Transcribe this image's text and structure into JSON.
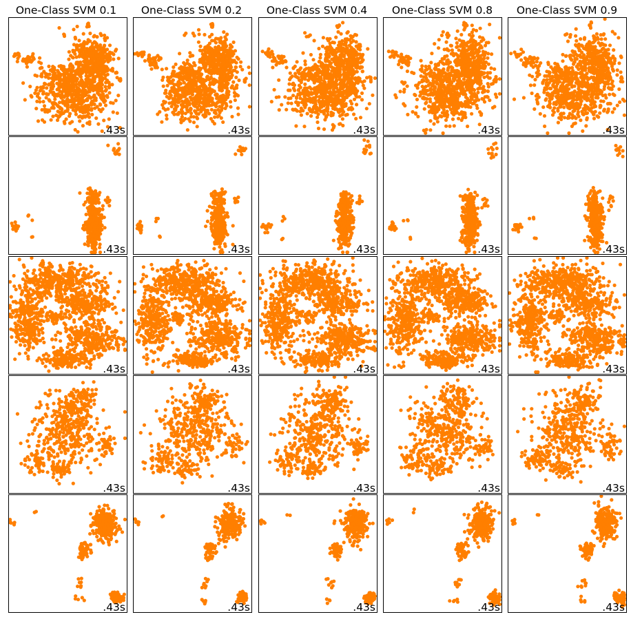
{
  "figure": {
    "marker_color": "#ff7f00"
  },
  "chart_data": {
    "type": "scatter",
    "grid": false,
    "columns": [
      {
        "title": "One-Class SVM 0.1"
      },
      {
        "title": "One-Class SVM 0.2"
      },
      {
        "title": "One-Class SVM 0.4"
      },
      {
        "title": "One-Class SVM 0.8"
      },
      {
        "title": "One-Class SVM 0.9"
      }
    ],
    "rows": [
      {
        "dataset": 1,
        "timings": [
          ".43s",
          ".43s",
          ".43s",
          ".43s",
          ".43s"
        ],
        "clusters": [
          {
            "cx": 0.55,
            "cy": 0.66,
            "rx": 0.3,
            "ry": 0.23,
            "n": 500
          },
          {
            "cx": 0.7,
            "cy": 0.35,
            "rx": 0.18,
            "ry": 0.18,
            "n": 260
          },
          {
            "cx": 0.78,
            "cy": 0.45,
            "rx": 0.1,
            "ry": 0.28,
            "n": 140
          },
          {
            "cx": 0.45,
            "cy": 0.48,
            "rx": 0.18,
            "ry": 0.08,
            "n": 80
          },
          {
            "cx": 0.18,
            "cy": 0.37,
            "rx": 0.07,
            "ry": 0.05,
            "n": 30
          },
          {
            "cx": 0.08,
            "cy": 0.31,
            "rx": 0.04,
            "ry": 0.03,
            "n": 12
          },
          {
            "cx": 0.68,
            "cy": 0.07,
            "rx": 0.02,
            "ry": 0.03,
            "n": 6
          },
          {
            "cx": 0.95,
            "cy": 0.53,
            "rx": 0.02,
            "ry": 0.03,
            "n": 5
          },
          {
            "cx": 0.5,
            "cy": 0.15,
            "rx": 0.12,
            "ry": 0.05,
            "n": 6
          }
        ]
      },
      {
        "dataset": 2,
        "timings": [
          ".43s",
          ".43s",
          ".43s",
          ".43s",
          ".43s"
        ],
        "clusters": [
          {
            "cx": 0.73,
            "cy": 0.75,
            "rx": 0.07,
            "ry": 0.2,
            "n": 260
          },
          {
            "cx": 0.72,
            "cy": 0.55,
            "rx": 0.05,
            "ry": 0.1,
            "n": 60
          },
          {
            "cx": 0.07,
            "cy": 0.77,
            "rx": 0.03,
            "ry": 0.04,
            "n": 18
          },
          {
            "cx": 0.92,
            "cy": 0.12,
            "rx": 0.04,
            "ry": 0.07,
            "n": 12
          },
          {
            "cx": 0.2,
            "cy": 0.7,
            "rx": 0.03,
            "ry": 0.03,
            "n": 3
          },
          {
            "cx": 0.22,
            "cy": 0.86,
            "rx": 0.02,
            "ry": 0.02,
            "n": 2
          },
          {
            "cx": 0.86,
            "cy": 0.55,
            "rx": 0.03,
            "ry": 0.05,
            "n": 8
          }
        ]
      },
      {
        "dataset": 3,
        "timings": [
          ".43s",
          ".43s",
          ".43s",
          ".43s",
          ".43s"
        ],
        "clusters": [
          {
            "cx": 0.45,
            "cy": 0.22,
            "rx": 0.32,
            "ry": 0.15,
            "n": 360
          },
          {
            "cx": 0.18,
            "cy": 0.55,
            "rx": 0.14,
            "ry": 0.28,
            "n": 300
          },
          {
            "cx": 0.72,
            "cy": 0.7,
            "rx": 0.25,
            "ry": 0.14,
            "n": 280
          },
          {
            "cx": 0.68,
            "cy": 0.4,
            "rx": 0.22,
            "ry": 0.12,
            "n": 200
          },
          {
            "cx": 0.5,
            "cy": 0.88,
            "rx": 0.2,
            "ry": 0.07,
            "n": 150
          },
          {
            "cx": 0.4,
            "cy": 0.52,
            "rx": 0.1,
            "ry": 0.06,
            "n": 40
          }
        ]
      },
      {
        "dataset": 4,
        "timings": [
          ".43s",
          ".43s",
          ".43s",
          ".43s",
          ".43s"
        ],
        "clusters": [
          {
            "cx": 0.5,
            "cy": 0.48,
            "rx": 0.3,
            "ry": 0.3,
            "n": 320
          },
          {
            "cx": 0.62,
            "cy": 0.22,
            "rx": 0.14,
            "ry": 0.14,
            "n": 100
          },
          {
            "cx": 0.25,
            "cy": 0.72,
            "rx": 0.12,
            "ry": 0.1,
            "n": 60
          },
          {
            "cx": 0.85,
            "cy": 0.6,
            "rx": 0.08,
            "ry": 0.1,
            "n": 40
          },
          {
            "cx": 0.45,
            "cy": 0.8,
            "rx": 0.1,
            "ry": 0.08,
            "n": 40
          }
        ]
      },
      {
        "dataset": 5,
        "timings": [
          ".43s",
          ".43s",
          ".43s",
          ".43s",
          ".43s"
        ],
        "clusters": [
          {
            "cx": 0.82,
            "cy": 0.25,
            "rx": 0.1,
            "ry": 0.14,
            "n": 240
          },
          {
            "cx": 0.66,
            "cy": 0.48,
            "rx": 0.05,
            "ry": 0.07,
            "n": 50
          },
          {
            "cx": 0.93,
            "cy": 0.88,
            "rx": 0.05,
            "ry": 0.05,
            "n": 60
          },
          {
            "cx": 0.04,
            "cy": 0.23,
            "rx": 0.03,
            "ry": 0.03,
            "n": 6
          },
          {
            "cx": 0.25,
            "cy": 0.17,
            "rx": 0.02,
            "ry": 0.03,
            "n": 2
          },
          {
            "cx": 0.62,
            "cy": 0.75,
            "rx": 0.04,
            "ry": 0.05,
            "n": 8
          },
          {
            "cx": 0.6,
            "cy": 0.9,
            "rx": 0.05,
            "ry": 0.03,
            "n": 5
          }
        ]
      }
    ]
  }
}
